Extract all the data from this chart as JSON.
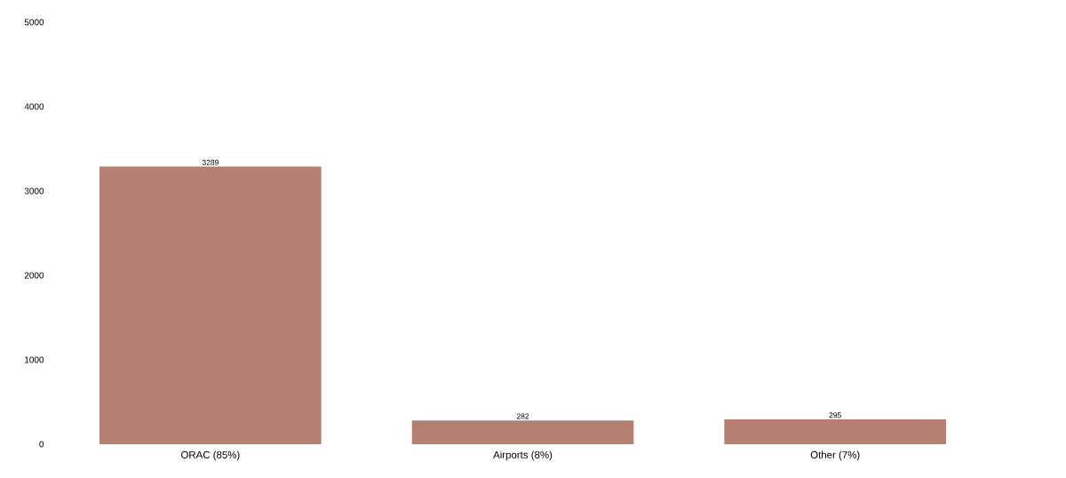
{
  "chart_data": {
    "type": "bar",
    "categories": [
      "ORAC (85%)",
      "Airports (8%)",
      "Other (7%)"
    ],
    "values": [
      3289,
      282,
      295
    ],
    "color": "#b58072",
    "ylim": [
      0,
      5000
    ],
    "yticks": [
      0,
      1000,
      2000,
      3000,
      4000,
      5000
    ],
    "data_labels": true,
    "grid": false
  }
}
